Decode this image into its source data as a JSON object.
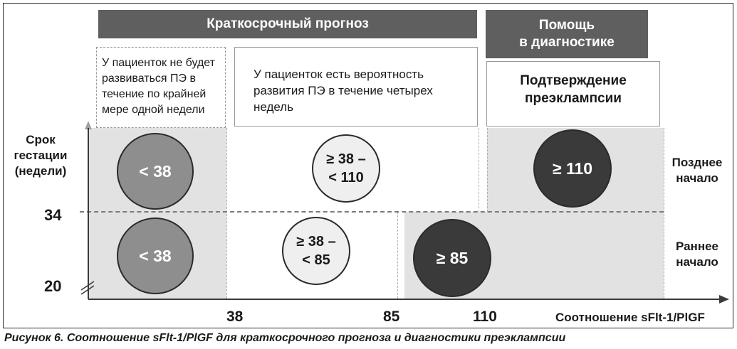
{
  "headers": {
    "short_term": "Краткосрочный прогноз",
    "diagnosis": "Помощь\nв диагностике"
  },
  "boxes": {
    "no_pe": "У пациенток не будет развиваться ПЭ в течение по крайней мере одной недели",
    "risk_pe": "У пациенток есть вероятность развития ПЭ в течение четырех недель",
    "confirm": "Подтверждение\nпреэклампсии"
  },
  "y_axis": {
    "title": "Срок\nгестации\n(недели)",
    "ticks": [
      "34",
      "20"
    ]
  },
  "x_axis": {
    "title": "Соотношение sFlt-1/PlGF",
    "ticks": [
      "38",
      "85",
      "110"
    ]
  },
  "rows": {
    "late": "Позднее\nначало",
    "early": "Раннее\nначало"
  },
  "circles": {
    "late_low": "< 38",
    "late_mid": "≥ 38 –\n< 110",
    "late_high": "≥ 110",
    "early_low": "< 38",
    "early_mid": "≥ 38 –\n< 85",
    "early_high": "≥ 85"
  },
  "caption": "Рисунок 6. Соотношение sFlt-1/PlGF для краткосрочного прогноза и диагностики преэклампсии",
  "colors": {
    "header_bg": "#5f5f5f",
    "zone_bg": "#e2e2e2",
    "circle_low": "#8e8e8e",
    "circle_mid": "#efefef",
    "circle_high": "#3a3a3a"
  }
}
